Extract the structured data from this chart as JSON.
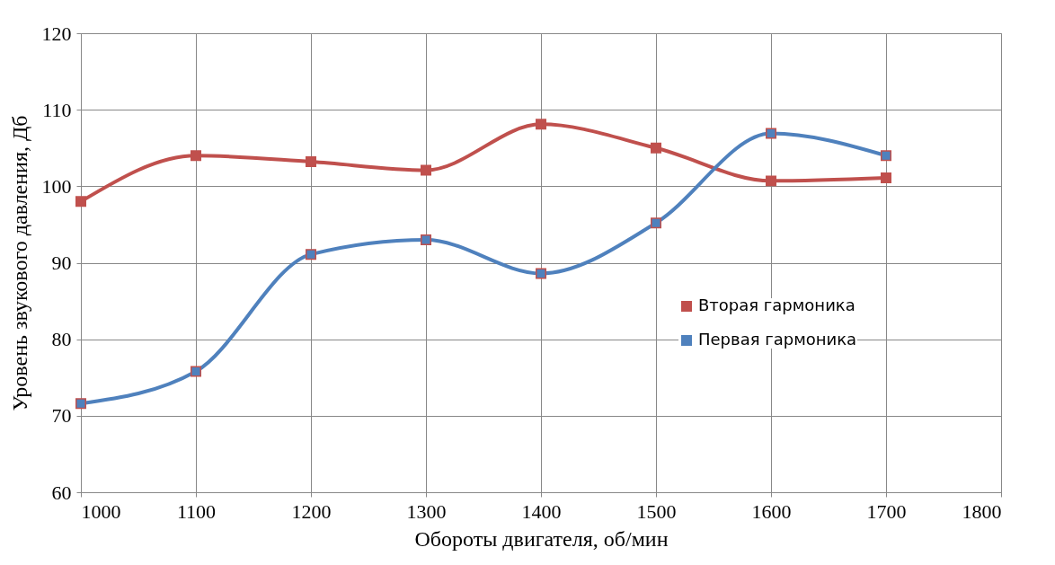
{
  "chart_data": {
    "type": "line",
    "xlabel": "Обороты двигателя, об/мин",
    "ylabel": "Уровень звукового давления, Дб",
    "x": [
      1000,
      1100,
      1200,
      1300,
      1400,
      1500,
      1600,
      1700
    ],
    "series": [
      {
        "name": "Вторая гармоника",
        "color": "#c0504d",
        "values": [
          98.0,
          104.0,
          103.2,
          102.1,
          108.1,
          105.0,
          100.7,
          101.1
        ]
      },
      {
        "name": "Первая гармоника",
        "color": "#4f81bd",
        "values": [
          71.6,
          75.8,
          91.1,
          93.0,
          88.6,
          95.2,
          106.9,
          104.0
        ]
      }
    ],
    "xlim": [
      1000,
      1800
    ],
    "xticks": [
      1000,
      1100,
      1200,
      1300,
      1400,
      1500,
      1600,
      1700,
      1800
    ],
    "ylim": [
      60,
      120
    ],
    "yticks": [
      60,
      70,
      80,
      90,
      100,
      110,
      120
    ],
    "grid": true,
    "legend": "bottom right",
    "marker": "square",
    "line_style": "solid"
  }
}
